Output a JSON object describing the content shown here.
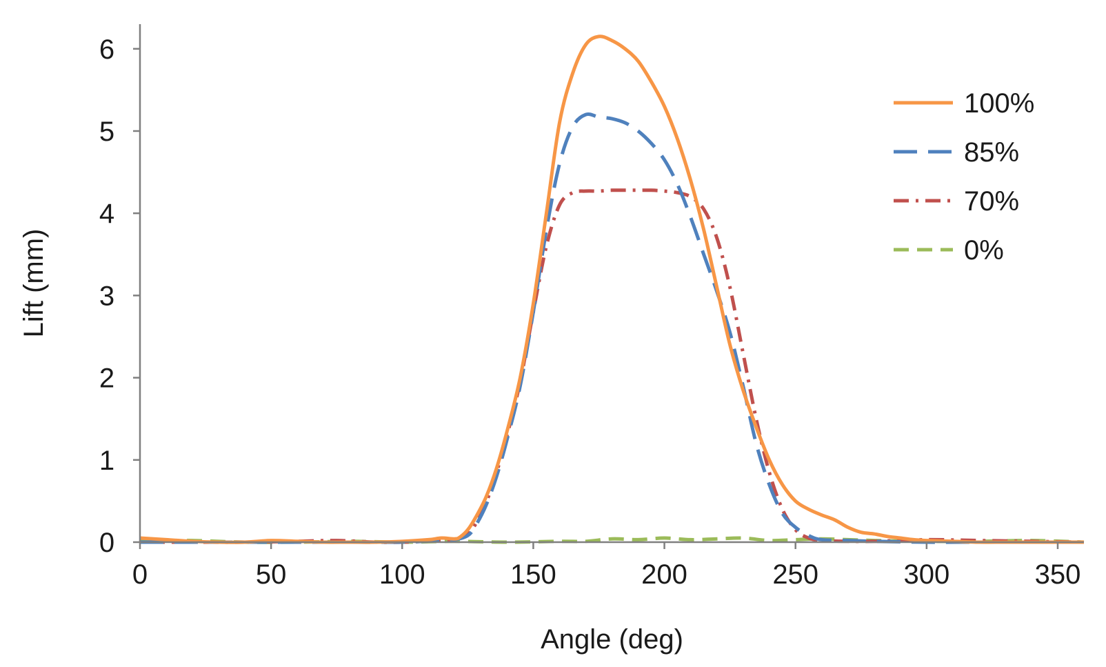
{
  "chart_data": {
    "type": "line",
    "title": "",
    "xlabel": "Angle (deg)",
    "ylabel": "Lift (mm)",
    "xlim": [
      0,
      360
    ],
    "ylim": [
      0,
      6.3
    ],
    "xticks": [
      0,
      50,
      100,
      150,
      200,
      250,
      300,
      350
    ],
    "yticks": [
      0,
      1,
      2,
      3,
      4,
      5,
      6
    ],
    "xtick_labels": [
      "0",
      "50",
      "100",
      "150",
      "200",
      "250",
      "300",
      "350"
    ],
    "ytick_labels": [
      "0",
      "1",
      "2",
      "3",
      "4",
      "5",
      "6"
    ],
    "grid": false,
    "legend_position": "top-right",
    "series": [
      {
        "name": "100%",
        "color": "#F79646",
        "dash": "solid",
        "x": [
          0,
          10,
          20,
          30,
          40,
          50,
          60,
          70,
          80,
          90,
          100,
          110,
          115,
          120,
          122,
          125,
          128,
          132,
          136,
          140,
          145,
          150,
          155,
          160,
          165,
          170,
          175,
          180,
          185,
          190,
          195,
          200,
          205,
          210,
          215,
          220,
          225,
          230,
          235,
          240,
          245,
          250,
          255,
          260,
          265,
          270,
          275,
          280,
          285,
          290,
          295,
          300,
          310,
          320,
          330,
          340,
          350,
          360
        ],
        "y": [
          0.05,
          0.03,
          0.01,
          0.0,
          0.0,
          0.02,
          0.01,
          0.0,
          0.0,
          0.0,
          0.01,
          0.03,
          0.05,
          0.04,
          0.06,
          0.15,
          0.3,
          0.55,
          0.9,
          1.35,
          2.0,
          2.9,
          4.0,
          5.1,
          5.7,
          6.05,
          6.15,
          6.1,
          6.0,
          5.85,
          5.6,
          5.3,
          4.9,
          4.4,
          3.8,
          3.1,
          2.4,
          1.85,
          1.4,
          1.0,
          0.7,
          0.5,
          0.4,
          0.33,
          0.27,
          0.18,
          0.12,
          0.1,
          0.07,
          0.05,
          0.03,
          0.02,
          0.01,
          0.0,
          0.0,
          0.0,
          0.0,
          0.0
        ]
      },
      {
        "name": "85%",
        "color": "#4F81BD",
        "dash": "long-dash",
        "x": [
          0,
          20,
          40,
          60,
          80,
          100,
          115,
          120,
          125,
          128,
          132,
          136,
          140,
          145,
          150,
          155,
          160,
          165,
          170,
          175,
          180,
          185,
          190,
          195,
          200,
          205,
          210,
          215,
          220,
          225,
          230,
          235,
          240,
          245,
          250,
          255,
          260,
          270,
          280,
          300,
          320,
          340,
          360
        ],
        "y": [
          0.0,
          0.0,
          0.0,
          0.0,
          0.0,
          0.0,
          0.02,
          0.03,
          0.08,
          0.2,
          0.45,
          0.8,
          1.25,
          1.9,
          2.8,
          3.8,
          4.6,
          5.05,
          5.2,
          5.17,
          5.15,
          5.1,
          5.0,
          4.85,
          4.65,
          4.35,
          3.95,
          3.5,
          3.05,
          2.55,
          1.9,
          1.2,
          0.7,
          0.35,
          0.18,
          0.08,
          0.03,
          0.02,
          0.01,
          0.0,
          0.0,
          0.0,
          0.0
        ]
      },
      {
        "name": "70%",
        "color": "#C0504D",
        "dash": "dash-dot",
        "x": [
          0,
          20,
          40,
          60,
          75,
          90,
          100,
          115,
          120,
          125,
          128,
          132,
          136,
          140,
          145,
          150,
          155,
          160,
          165,
          170,
          175,
          180,
          185,
          190,
          195,
          200,
          205,
          210,
          215,
          220,
          225,
          230,
          235,
          240,
          245,
          250,
          255,
          260,
          270,
          280,
          300,
          320,
          340,
          360
        ],
        "y": [
          0.0,
          0.0,
          0.0,
          0.01,
          0.02,
          0.0,
          0.0,
          0.02,
          0.03,
          0.1,
          0.22,
          0.48,
          0.85,
          1.3,
          1.95,
          2.8,
          3.6,
          4.1,
          4.25,
          4.27,
          4.27,
          4.28,
          4.28,
          4.28,
          4.28,
          4.27,
          4.25,
          4.2,
          4.05,
          3.7,
          3.1,
          2.3,
          1.5,
          0.85,
          0.4,
          0.15,
          0.05,
          0.02,
          0.01,
          0.01,
          0.03,
          0.02,
          0.01,
          0.0
        ]
      },
      {
        "name": "0%",
        "color": "#9BBB59",
        "dash": "dash",
        "x": [
          0,
          20,
          40,
          60,
          80,
          100,
          120,
          140,
          160,
          170,
          180,
          190,
          200,
          210,
          220,
          230,
          240,
          250,
          260,
          280,
          300,
          320,
          340,
          360
        ],
        "y": [
          0.02,
          0.02,
          0.0,
          0.0,
          0.01,
          0.0,
          0.01,
          0.0,
          0.01,
          0.01,
          0.04,
          0.03,
          0.05,
          0.03,
          0.04,
          0.05,
          0.02,
          0.03,
          0.04,
          0.02,
          0.01,
          0.01,
          0.02,
          0.0
        ]
      }
    ]
  }
}
